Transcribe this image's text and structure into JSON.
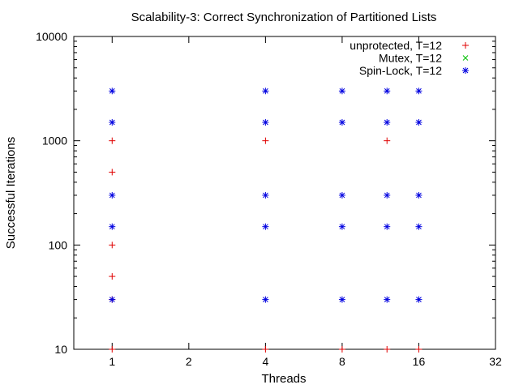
{
  "chart_data": {
    "type": "scatter",
    "title": "Scalability-3: Correct Synchronization of Partitioned Lists",
    "xlabel": "Threads",
    "ylabel": "Successful Iterations",
    "x_scale": "log2",
    "y_scale": "log10",
    "xlim": [
      0.707,
      32
    ],
    "ylim": [
      10,
      10000
    ],
    "x_ticks": [
      {
        "value": 1,
        "label": "1"
      },
      {
        "value": 2,
        "label": "2"
      },
      {
        "value": 4,
        "label": "4"
      },
      {
        "value": 8,
        "label": "8"
      },
      {
        "value": 16,
        "label": "16"
      },
      {
        "value": 32,
        "label": "32"
      }
    ],
    "y_ticks": [
      {
        "value": 10,
        "label": "10"
      },
      {
        "value": 100,
        "label": "100"
      },
      {
        "value": 1000,
        "label": "1000"
      },
      {
        "value": 10000,
        "label": "10000"
      }
    ],
    "grid": false,
    "legend_position": "top-right",
    "series": [
      {
        "name": "unprotected, T=12",
        "marker": "plus",
        "color": "#e00000",
        "points": [
          {
            "x": 1,
            "y": 10
          },
          {
            "x": 1,
            "y": 30
          },
          {
            "x": 1,
            "y": 50
          },
          {
            "x": 1,
            "y": 100
          },
          {
            "x": 1,
            "y": 500
          },
          {
            "x": 1,
            "y": 1000
          },
          {
            "x": 4,
            "y": 10
          },
          {
            "x": 4,
            "y": 1000
          },
          {
            "x": 8,
            "y": 10
          },
          {
            "x": 12,
            "y": 10
          },
          {
            "x": 12,
            "y": 1000
          },
          {
            "x": 16,
            "y": 10
          }
        ]
      },
      {
        "name": "Mutex, T=12",
        "marker": "cross",
        "color": "#00c000",
        "points": []
      },
      {
        "name": "Spin-Lock, T=12",
        "marker": "star",
        "color": "#0000e0",
        "points": [
          {
            "x": 1,
            "y": 30
          },
          {
            "x": 1,
            "y": 150
          },
          {
            "x": 1,
            "y": 300
          },
          {
            "x": 1,
            "y": 1500
          },
          {
            "x": 1,
            "y": 3000
          },
          {
            "x": 4,
            "y": 30
          },
          {
            "x": 4,
            "y": 150
          },
          {
            "x": 4,
            "y": 300
          },
          {
            "x": 4,
            "y": 1500
          },
          {
            "x": 4,
            "y": 3000
          },
          {
            "x": 8,
            "y": 30
          },
          {
            "x": 8,
            "y": 150
          },
          {
            "x": 8,
            "y": 300
          },
          {
            "x": 8,
            "y": 1500
          },
          {
            "x": 8,
            "y": 3000
          },
          {
            "x": 12,
            "y": 30
          },
          {
            "x": 12,
            "y": 150
          },
          {
            "x": 12,
            "y": 300
          },
          {
            "x": 12,
            "y": 1500
          },
          {
            "x": 12,
            "y": 3000
          },
          {
            "x": 16,
            "y": 30
          },
          {
            "x": 16,
            "y": 150
          },
          {
            "x": 16,
            "y": 300
          },
          {
            "x": 16,
            "y": 1500
          },
          {
            "x": 16,
            "y": 3000
          }
        ]
      }
    ]
  }
}
